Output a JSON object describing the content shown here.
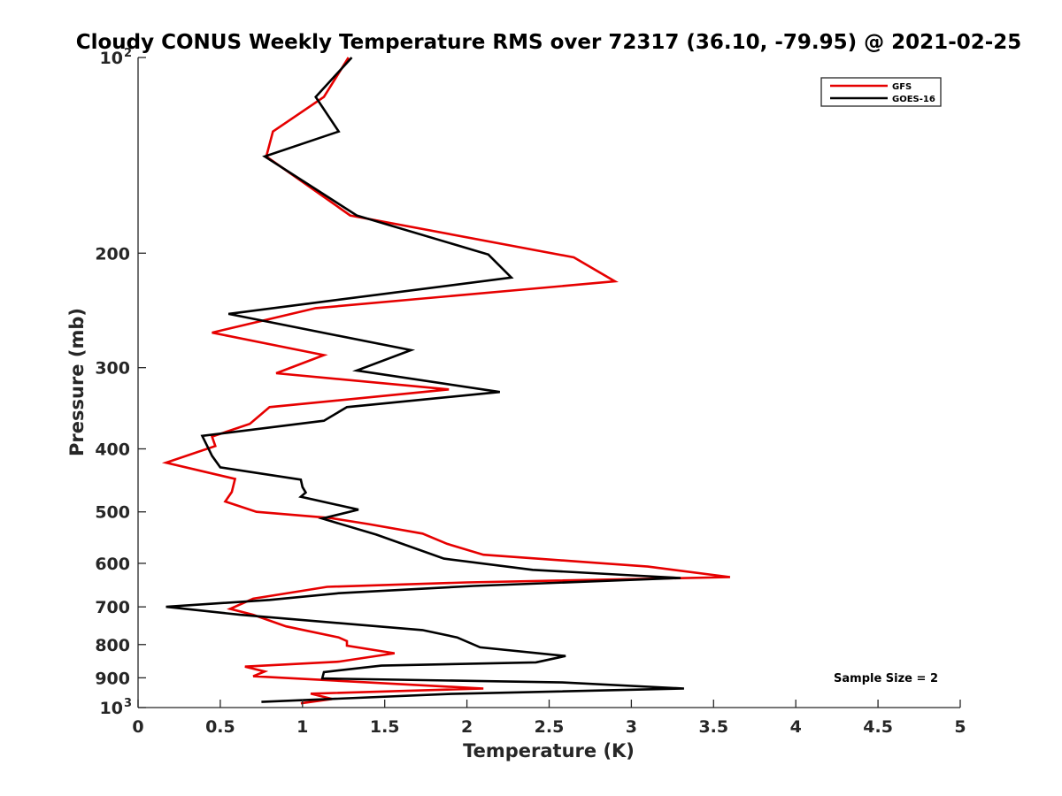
{
  "chart_data": {
    "type": "line",
    "title": "Cloudy CONUS Weekly Temperature RMS over 72317 (36.10, -79.95) @ 2021-02-25",
    "xlabel": "Temperature (K)",
    "ylabel": "Pressure (mb)",
    "xlim": [
      0,
      5
    ],
    "ylim": [
      100,
      1000
    ],
    "y_scale": "log",
    "y_reversed": true,
    "x_ticks": [
      "0",
      "0.5",
      "1",
      "1.5",
      "2",
      "2.5",
      "3",
      "3.5",
      "4",
      "4.5",
      "5"
    ],
    "y_ticks": [
      {
        "value": 100,
        "label": "10",
        "sup": "2"
      },
      {
        "value": 200,
        "label": "200"
      },
      {
        "value": 300,
        "label": "300"
      },
      {
        "value": 400,
        "label": "400"
      },
      {
        "value": 500,
        "label": "500"
      },
      {
        "value": 600,
        "label": "600"
      },
      {
        "value": 700,
        "label": "700"
      },
      {
        "value": 800,
        "label": "800"
      },
      {
        "value": 900,
        "label": "900"
      },
      {
        "value": 1000,
        "label": "10",
        "sup": "3"
      }
    ],
    "grid": false,
    "legend_position": "top-right",
    "annotation": "Sample Size = 2",
    "series": [
      {
        "name": "GFS",
        "color": "#e60000",
        "points": [
          [
            1.28,
            100
          ],
          [
            1.13,
            115
          ],
          [
            0.82,
            130
          ],
          [
            0.78,
            142
          ],
          [
            1.29,
            175
          ],
          [
            2.65,
            203
          ],
          [
            2.9,
            221
          ],
          [
            1.08,
            243
          ],
          [
            0.45,
            265
          ],
          [
            1.13,
            287
          ],
          [
            0.84,
            306
          ],
          [
            1.89,
            324
          ],
          [
            0.8,
            345
          ],
          [
            0.68,
            366
          ],
          [
            0.45,
            383
          ],
          [
            0.47,
            396
          ],
          [
            0.17,
            420
          ],
          [
            0.59,
            445
          ],
          [
            0.57,
            466
          ],
          [
            0.53,
            482
          ],
          [
            0.72,
            500
          ],
          [
            1.17,
            511
          ],
          [
            1.4,
            522
          ],
          [
            1.73,
            540
          ],
          [
            1.88,
            560
          ],
          [
            2.1,
            582
          ],
          [
            3.1,
            607
          ],
          [
            3.6,
            630
          ],
          [
            2.0,
            642
          ],
          [
            1.15,
            652
          ],
          [
            0.7,
            680
          ],
          [
            0.56,
            705
          ],
          [
            0.7,
            720
          ],
          [
            0.9,
            750
          ],
          [
            1.22,
            780
          ],
          [
            1.27,
            790
          ],
          [
            1.27,
            803
          ],
          [
            1.56,
            825
          ],
          [
            1.22,
            850
          ],
          [
            0.65,
            865
          ],
          [
            0.77,
            880
          ],
          [
            0.7,
            895
          ],
          [
            2.1,
            935
          ],
          [
            1.05,
            952
          ],
          [
            1.18,
            970
          ],
          [
            0.99,
            985
          ]
        ]
      },
      {
        "name": "GOES-16",
        "color": "#000000",
        "points": [
          [
            1.3,
            100
          ],
          [
            1.08,
            115
          ],
          [
            1.22,
            130
          ],
          [
            0.77,
            142
          ],
          [
            1.33,
            175
          ],
          [
            2.13,
            201
          ],
          [
            2.27,
            218
          ],
          [
            0.55,
            248
          ],
          [
            1.66,
            282
          ],
          [
            1.33,
            303
          ],
          [
            2.2,
            327
          ],
          [
            1.27,
            345
          ],
          [
            1.13,
            362
          ],
          [
            0.39,
            382
          ],
          [
            0.45,
            410
          ],
          [
            0.5,
            427
          ],
          [
            0.99,
            446
          ],
          [
            1.0,
            458
          ],
          [
            1.02,
            467
          ],
          [
            0.99,
            474
          ],
          [
            1.34,
            496
          ],
          [
            1.12,
            512
          ],
          [
            1.45,
            542
          ],
          [
            1.86,
            590
          ],
          [
            2.4,
            614
          ],
          [
            3.1,
            628
          ],
          [
            3.3,
            632
          ],
          [
            2.04,
            650
          ],
          [
            1.22,
            667
          ],
          [
            0.8,
            683
          ],
          [
            0.17,
            700
          ],
          [
            0.62,
            720
          ],
          [
            1.73,
            760
          ],
          [
            1.94,
            780
          ],
          [
            2.08,
            808
          ],
          [
            2.6,
            833
          ],
          [
            2.42,
            852
          ],
          [
            1.48,
            862
          ],
          [
            1.13,
            882
          ],
          [
            1.12,
            902
          ],
          [
            2.58,
            915
          ],
          [
            3.32,
            935
          ],
          [
            1.9,
            953
          ],
          [
            0.75,
            980
          ]
        ]
      }
    ]
  }
}
